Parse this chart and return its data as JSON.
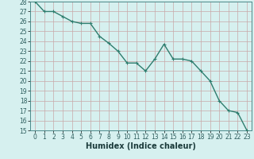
{
  "x": [
    0,
    1,
    2,
    3,
    4,
    5,
    6,
    7,
    8,
    9,
    10,
    11,
    12,
    13,
    14,
    15,
    16,
    17,
    18,
    19,
    20,
    21,
    22,
    23
  ],
  "y": [
    28,
    27,
    27,
    26.5,
    26,
    25.8,
    25.8,
    24.5,
    23.8,
    23,
    21.8,
    21.8,
    21,
    22.2,
    23.7,
    22.2,
    22.2,
    22,
    21,
    20,
    18,
    17,
    16.8,
    15
  ],
  "line_color": "#2e7d6e",
  "marker_color": "#2e7d6e",
  "bg_color": "#d6f0ef",
  "grid_color_v": "#c8a8a8",
  "grid_color_h": "#c8a8a8",
  "xlabel": "Humidex (Indice chaleur)",
  "ylim": [
    15,
    28
  ],
  "xlim": [
    -0.5,
    23.5
  ],
  "yticks": [
    15,
    16,
    17,
    18,
    19,
    20,
    21,
    22,
    23,
    24,
    25,
    26,
    27,
    28
  ],
  "xticks": [
    0,
    1,
    2,
    3,
    4,
    5,
    6,
    7,
    8,
    9,
    10,
    11,
    12,
    13,
    14,
    15,
    16,
    17,
    18,
    19,
    20,
    21,
    22,
    23
  ],
  "xlabel_fontsize": 7,
  "tick_fontsize": 5.5,
  "marker_size": 2.5,
  "line_width": 1.0
}
